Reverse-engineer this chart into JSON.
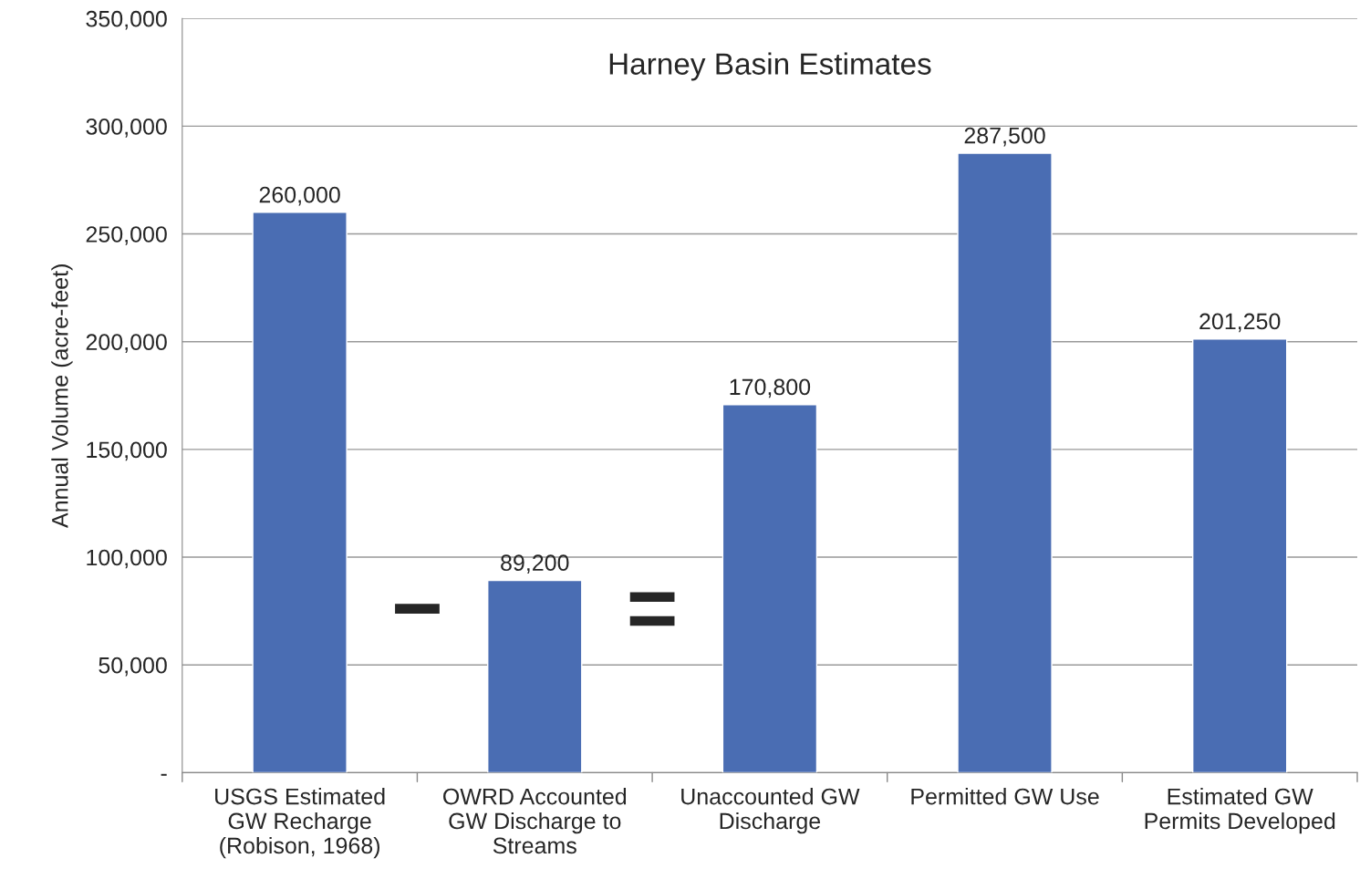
{
  "chart_data": {
    "type": "bar",
    "title": "Harney Basin Estimates",
    "ylabel": "Annual Volume (acre-feet)",
    "categories": [
      "USGS Estimated\nGW Recharge\n(Robison, 1968)",
      "OWRD Accounted\nGW Discharge to\nStreams",
      "Unaccounted GW\nDischarge",
      "Permitted GW Use",
      "Estimated GW\nPermits Developed"
    ],
    "values": [
      260000,
      89200,
      170800,
      287500,
      201250
    ],
    "value_labels": [
      "260,000",
      "89,200",
      "170,800",
      "287,500",
      "201,250"
    ],
    "color": "#4a6db3",
    "ylim": [
      0,
      350000
    ],
    "yticks": [
      {
        "value": 0,
        "label": "-"
      },
      {
        "value": 50000,
        "label": "50,000"
      },
      {
        "value": 100000,
        "label": "100,000"
      },
      {
        "value": 150000,
        "label": "150,000"
      },
      {
        "value": 200000,
        "label": "200,000"
      },
      {
        "value": 250000,
        "label": "250,000"
      },
      {
        "value": 300000,
        "label": "300,000"
      },
      {
        "value": 350000,
        "label": "350,000"
      }
    ],
    "grid": "y",
    "annotations": [
      "−",
      "="
    ]
  }
}
